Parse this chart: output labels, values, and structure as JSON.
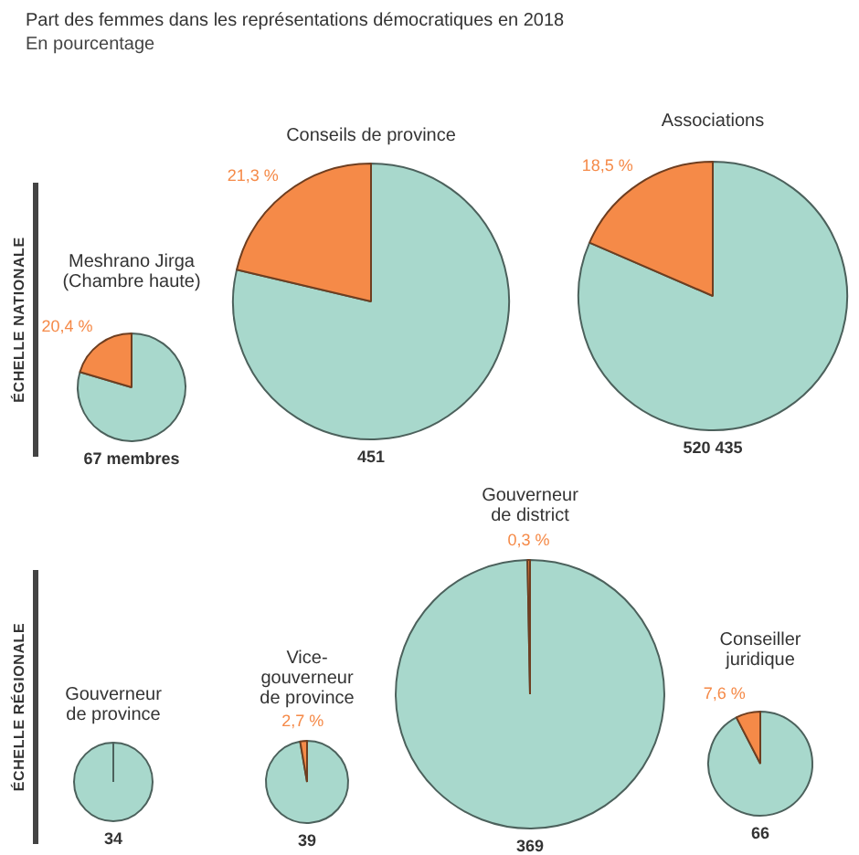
{
  "chart_data": [
    {
      "type": "other",
      "title": "Part des femmes dans les représentations démocratiques en 2018",
      "subtitle": "En pourcentage"
    },
    {
      "type": "other",
      "title": "ÉCHELLE NATIONALE"
    },
    {
      "type": "pie",
      "title": "Meshrano Jirga\n(Chambre haute)",
      "categories": [
        null,
        null
      ],
      "values": [
        79.6,
        20.4
      ],
      "colors": [
        "#a8d8cc",
        "#f58a48"
      ],
      "value_labels": [
        null,
        "20,4 %"
      ],
      "annotations": [
        "67 membres"
      ]
    },
    {
      "type": "pie",
      "title": "Conseils de province",
      "categories": [
        null,
        null
      ],
      "values": [
        78.7,
        21.3
      ],
      "colors": [
        "#a8d8cc",
        "#f58a48"
      ],
      "value_labels": [
        null,
        "21,3 %"
      ],
      "annotations": [
        "451"
      ]
    },
    {
      "type": "pie",
      "title": "Associations",
      "categories": [
        null,
        null
      ],
      "values": [
        81.5,
        18.5
      ],
      "colors": [
        "#a8d8cc",
        "#f58a48"
      ],
      "value_labels": [
        null,
        "18,5 %"
      ],
      "annotations": [
        "520 435"
      ]
    },
    {
      "type": "other",
      "title": "ÉCHELLE RÉGIONALE"
    },
    {
      "type": "pie",
      "title": "Gouverneur\nde province",
      "categories": [
        null,
        null
      ],
      "values": [
        100,
        0
      ],
      "colors": [
        "#a8d8cc",
        "#f58a48"
      ],
      "annotations": [
        "34"
      ]
    },
    {
      "type": "pie",
      "title": "Vice-\ngouverneur\nde province",
      "categories": [
        null,
        null
      ],
      "values": [
        97.3,
        2.7
      ],
      "colors": [
        "#a8d8cc",
        "#f58a48"
      ],
      "value_labels": [
        null,
        "2,7 %"
      ],
      "annotations": [
        "39"
      ]
    },
    {
      "type": "pie",
      "title": "Gouverneur\nde district",
      "categories": [
        null,
        null
      ],
      "values": [
        99.7,
        0.3
      ],
      "colors": [
        "#a8d8cc",
        "#f58a48"
      ],
      "value_labels": [
        null,
        "0,3 %"
      ],
      "annotations": [
        "369"
      ]
    },
    {
      "type": "pie",
      "title": "Conseiller\njuridique",
      "categories": [
        null,
        null
      ],
      "values": [
        92.4,
        7.6
      ],
      "colors": [
        "#a8d8cc",
        "#f58a48"
      ],
      "value_labels": [
        null,
        "7,6 %"
      ],
      "annotations": [
        "66"
      ]
    }
  ]
}
